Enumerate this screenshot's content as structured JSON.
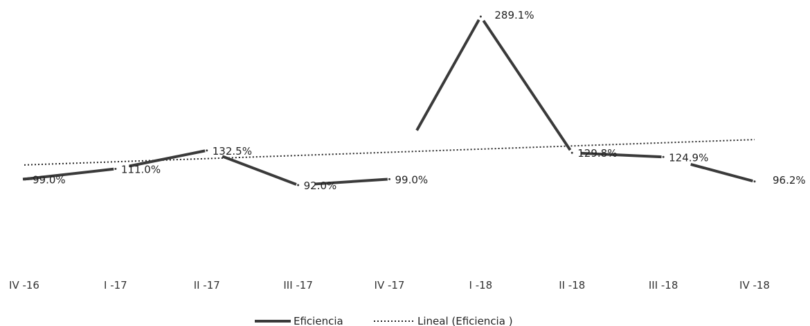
{
  "chart_data": {
    "type": "line",
    "categories": [
      "IV -16",
      "I -17",
      "II -17",
      "III -17",
      "IV -17",
      "I -18",
      "II -18",
      "III -18",
      "IV -18"
    ],
    "series": [
      {
        "name": "Eficiencia",
        "values": [
          99.0,
          111.0,
          132.5,
          92.0,
          99.0,
          289.1,
          129.8,
          124.9,
          96.2
        ]
      }
    ],
    "data_labels": [
      "99.0%",
      "111.0%",
      "132.5%",
      "92.0%",
      "99.0%",
      "289.1%",
      "129.8%",
      "124.9%",
      "96.2%"
    ],
    "trendline": {
      "name": "Lineal (Eficiencia )",
      "type": "linear"
    },
    "legend": {
      "position": "bottom",
      "entries": [
        "Eficiencia",
        "Lineal (Eficiencia )"
      ]
    },
    "grid": false,
    "y_axis_visible": false,
    "colors": {
      "series": "#3a3a3a",
      "trend": "#222222",
      "text": "#222222"
    }
  }
}
